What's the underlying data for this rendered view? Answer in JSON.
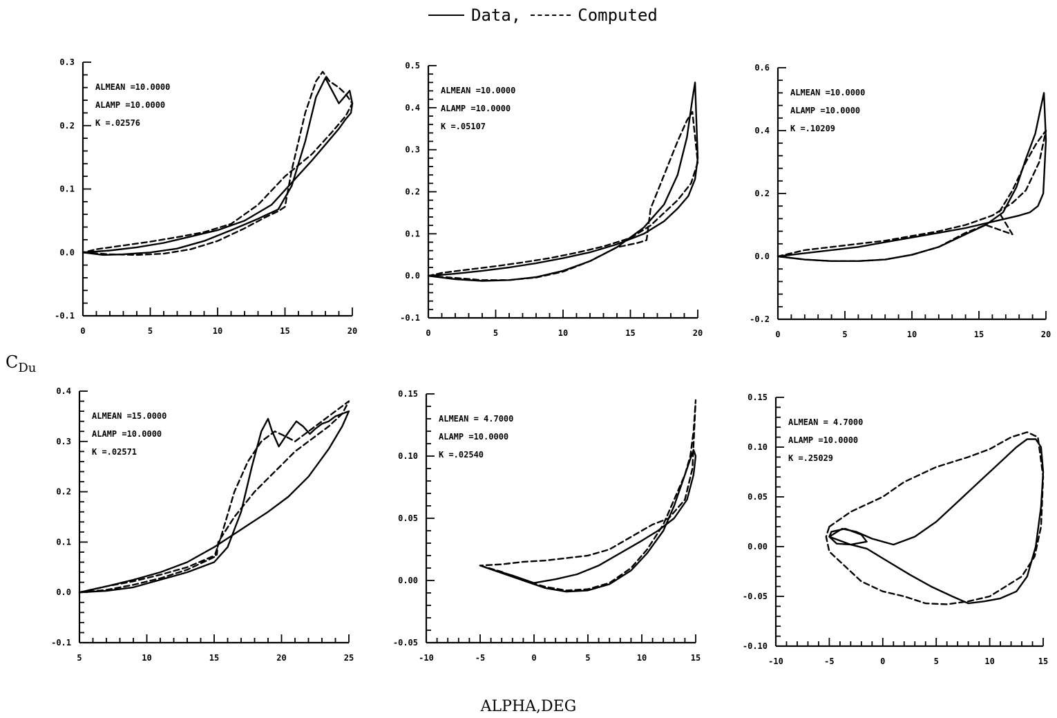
{
  "legend": {
    "data_label": "Data,",
    "computed_label": "Computed"
  },
  "ylabel_main": "C",
  "ylabel_sub": "Du",
  "xlabel": "ALPHA,DEG",
  "chart_data": [
    {
      "type": "line",
      "annotations": [
        "ALMEAN =10.0000",
        "ALAMP =10.0000",
        "K =.02576"
      ],
      "xlim": [
        0,
        20
      ],
      "ylim": [
        -0.1,
        0.3
      ],
      "xticks": [
        0,
        5,
        10,
        15,
        20
      ],
      "xtick_labels": [
        "0",
        "5",
        "10",
        "15",
        "20"
      ],
      "yticks": [
        -0.1,
        0.0,
        0.1,
        0.2,
        0.3
      ],
      "ytick_labels": [
        "-0.1",
        "0.0",
        "0.1",
        "0.2",
        "0.3"
      ],
      "series": [
        {
          "name": "Data",
          "style": "solid",
          "x": [
            0,
            1.5,
            3,
            5,
            7,
            9,
            11,
            13,
            14.5,
            15.5,
            16.5,
            17.3,
            18.0,
            18.5,
            19.0,
            19.4,
            19.8,
            20.0,
            19.9,
            19.5,
            19.0,
            18.0,
            17.0,
            15.5,
            14,
            12,
            10,
            8,
            6,
            4,
            2,
            0
          ],
          "y": [
            0.0,
            -0.004,
            -0.003,
            0.0,
            0.006,
            0.018,
            0.035,
            0.053,
            0.068,
            0.105,
            0.175,
            0.245,
            0.275,
            0.255,
            0.235,
            0.245,
            0.255,
            0.235,
            0.22,
            0.21,
            0.195,
            0.17,
            0.145,
            0.11,
            0.075,
            0.05,
            0.035,
            0.025,
            0.015,
            0.008,
            0.003,
            0.0
          ]
        },
        {
          "name": "Computed",
          "style": "dashed",
          "x": [
            0,
            2,
            4,
            6,
            8,
            10,
            12,
            13.5,
            14.5,
            15.0,
            15.5,
            16.5,
            17.3,
            17.8,
            18.3,
            19.0,
            19.5,
            20.0,
            19.5,
            18.5,
            17,
            15,
            13,
            11,
            9,
            7,
            5,
            3,
            1,
            0
          ],
          "y": [
            0.0,
            -0.003,
            -0.004,
            -0.002,
            0.005,
            0.018,
            0.038,
            0.055,
            0.065,
            0.072,
            0.13,
            0.22,
            0.27,
            0.285,
            0.27,
            0.26,
            0.25,
            0.235,
            0.215,
            0.19,
            0.155,
            0.12,
            0.075,
            0.045,
            0.032,
            0.024,
            0.017,
            0.011,
            0.005,
            0.0
          ]
        }
      ]
    },
    {
      "type": "line",
      "annotations": [
        "ALMEAN =10.0000",
        "ALAMP =10.0000",
        "K =.05107"
      ],
      "xlim": [
        0,
        20
      ],
      "ylim": [
        -0.1,
        0.5
      ],
      "xticks": [
        0,
        5,
        10,
        15,
        20
      ],
      "xtick_labels": [
        "0",
        "5",
        "10",
        "15",
        "20"
      ],
      "yticks": [
        -0.1,
        0.0,
        0.1,
        0.2,
        0.3,
        0.4,
        0.5
      ],
      "ytick_labels": [
        "-0.1",
        "0.0",
        "0.1",
        "0.2",
        "0.3",
        "0.4",
        "0.5"
      ],
      "series": [
        {
          "name": "Data",
          "style": "solid",
          "x": [
            0,
            2,
            4,
            6,
            8,
            10,
            12,
            14,
            16,
            17.5,
            18.5,
            19.2,
            19.6,
            19.8,
            19.9,
            20.0,
            19.8,
            19.3,
            18.5,
            17.5,
            16,
            14,
            12,
            10,
            8,
            6,
            4,
            2,
            0
          ],
          "y": [
            0.0,
            -0.008,
            -0.012,
            -0.01,
            -0.003,
            0.012,
            0.035,
            0.068,
            0.115,
            0.17,
            0.24,
            0.33,
            0.42,
            0.46,
            0.37,
            0.28,
            0.23,
            0.19,
            0.16,
            0.13,
            0.1,
            0.075,
            0.056,
            0.042,
            0.03,
            0.02,
            0.012,
            0.005,
            0.0
          ]
        },
        {
          "name": "Computed",
          "style": "dashed",
          "x": [
            0,
            2,
            4,
            6,
            8,
            10,
            12,
            14,
            15.5,
            16.2,
            16.5,
            17.5,
            18.5,
            19.2,
            19.6,
            20.0,
            19.5,
            18.5,
            17.5,
            16.5,
            15,
            13,
            11,
            9,
            7,
            5,
            3,
            1,
            0
          ],
          "y": [
            0.0,
            -0.005,
            -0.01,
            -0.01,
            -0.004,
            0.01,
            0.035,
            0.068,
            0.078,
            0.085,
            0.16,
            0.24,
            0.32,
            0.37,
            0.39,
            0.27,
            0.22,
            0.18,
            0.15,
            0.12,
            0.09,
            0.07,
            0.055,
            0.042,
            0.032,
            0.023,
            0.015,
            0.007,
            0.0
          ]
        }
      ]
    },
    {
      "type": "line",
      "annotations": [
        "ALMEAN =10.0000",
        "ALAMP =10.0000",
        "K =.10209"
      ],
      "xlim": [
        0,
        20
      ],
      "ylim": [
        -0.2,
        0.6
      ],
      "xticks": [
        0,
        5,
        10,
        15,
        20
      ],
      "xtick_labels": [
        "0",
        "5",
        "10",
        "15",
        "20"
      ],
      "yticks": [
        -0.2,
        0.0,
        0.2,
        0.4,
        0.6
      ],
      "ytick_labels": [
        "-0.2",
        "0.0",
        "0.2",
        "0.4",
        "0.6"
      ],
      "series": [
        {
          "name": "Data",
          "style": "solid",
          "x": [
            0,
            2,
            4,
            6,
            8,
            10,
            12,
            14,
            15.5,
            16.8,
            17.8,
            18.5,
            19.2,
            19.6,
            19.85,
            20.0,
            19.8,
            19.4,
            18.8,
            18.0,
            17.0,
            15.5,
            14,
            12,
            10,
            8,
            6,
            4,
            2,
            0
          ],
          "y": [
            0.0,
            -0.01,
            -0.015,
            -0.015,
            -0.01,
            0.005,
            0.03,
            0.07,
            0.1,
            0.14,
            0.22,
            0.31,
            0.39,
            0.47,
            0.52,
            0.37,
            0.2,
            0.16,
            0.14,
            0.13,
            0.12,
            0.105,
            0.09,
            0.075,
            0.06,
            0.045,
            0.03,
            0.02,
            0.01,
            0.0
          ]
        },
        {
          "name": "Computed",
          "style": "dashed",
          "x": [
            0,
            2,
            4,
            6,
            8,
            10,
            12,
            14,
            15.5,
            16.5,
            17.5,
            16.5,
            17.5,
            18.5,
            19.3,
            20.0,
            19.5,
            18.5,
            17.5,
            16,
            14,
            12,
            10,
            8,
            6,
            4,
            2,
            0
          ],
          "y": [
            0.0,
            -0.01,
            -0.015,
            -0.015,
            -0.01,
            0.005,
            0.03,
            0.075,
            0.1,
            0.085,
            0.07,
            0.14,
            0.21,
            0.3,
            0.36,
            0.4,
            0.3,
            0.21,
            0.17,
            0.13,
            0.1,
            0.08,
            0.065,
            0.05,
            0.04,
            0.03,
            0.02,
            0.0
          ]
        }
      ]
    },
    {
      "type": "line",
      "annotations": [
        "ALMEAN =15.0000",
        "ALAMP =10.0000",
        "K =.02571"
      ],
      "xlim": [
        5,
        25
      ],
      "ylim": [
        -0.1,
        0.4
      ],
      "xticks": [
        5,
        10,
        15,
        20,
        25
      ],
      "xtick_labels": [
        "5",
        "10",
        "15",
        "20",
        "25"
      ],
      "yticks": [
        -0.1,
        0.0,
        0.1,
        0.2,
        0.3,
        0.4
      ],
      "ytick_labels": [
        "-0.1",
        "0.0",
        "0.1",
        "0.2",
        "0.3",
        "0.4"
      ],
      "series": [
        {
          "name": "Data",
          "style": "solid",
          "x": [
            5,
            7,
            9,
            11,
            13,
            15,
            16,
            17,
            17.8,
            18.5,
            19.0,
            19.3,
            19.8,
            20.3,
            20.7,
            21.1,
            21.6,
            22.1,
            22.5,
            23.0,
            23.5,
            24.0,
            24.5,
            25.0,
            24.5,
            23.5,
            22,
            20.5,
            19,
            17,
            15,
            13,
            11,
            9,
            7,
            5
          ],
          "y": [
            0.0,
            0.003,
            0.01,
            0.025,
            0.04,
            0.06,
            0.09,
            0.16,
            0.25,
            0.32,
            0.345,
            0.32,
            0.29,
            0.31,
            0.325,
            0.34,
            0.33,
            0.315,
            0.325,
            0.335,
            0.34,
            0.35,
            0.355,
            0.36,
            0.33,
            0.285,
            0.23,
            0.19,
            0.16,
            0.125,
            0.09,
            0.06,
            0.04,
            0.025,
            0.012,
            0.0
          ]
        },
        {
          "name": "Computed",
          "style": "dashed",
          "x": [
            5,
            7,
            9,
            11,
            13,
            15,
            15.5,
            16.5,
            17.5,
            18.5,
            19.5,
            20.3,
            21.0,
            22.0,
            23.0,
            24.0,
            25.0,
            24.5,
            23.5,
            22.5,
            21,
            19.5,
            18,
            16.5,
            15.3,
            15.2,
            13,
            11,
            9,
            7,
            5
          ],
          "y": [
            0.0,
            0.005,
            0.015,
            0.028,
            0.045,
            0.07,
            0.11,
            0.2,
            0.26,
            0.3,
            0.32,
            0.31,
            0.3,
            0.32,
            0.34,
            0.36,
            0.38,
            0.355,
            0.33,
            0.31,
            0.28,
            0.24,
            0.2,
            0.15,
            0.1,
            0.075,
            0.05,
            0.035,
            0.022,
            0.012,
            0.0
          ]
        }
      ]
    },
    {
      "type": "line",
      "annotations": [
        "ALMEAN = 4.7000",
        "ALAMP =10.0000",
        "K =.02540"
      ],
      "xlim": [
        -10,
        15
      ],
      "ylim": [
        -0.05,
        0.15
      ],
      "xticks": [
        -10,
        -5,
        0,
        5,
        10,
        15
      ],
      "xtick_labels": [
        "-10",
        "-5",
        "0",
        "5",
        "10",
        "15"
      ],
      "yticks": [
        -0.05,
        0.0,
        0.05,
        0.1,
        0.15
      ],
      "ytick_labels": [
        "-0.05",
        "0.00",
        "0.05",
        "0.10",
        "0.15"
      ],
      "series": [
        {
          "name": "Data",
          "style": "solid",
          "x": [
            -5,
            -3,
            -1,
            1,
            3,
            5,
            7,
            9,
            10.5,
            12,
            13,
            13.8,
            14.4,
            14.8,
            15.0,
            14.8,
            14.2,
            13.0,
            11.5,
            10,
            8,
            6,
            4,
            2,
            0,
            -2,
            -4,
            -5
          ],
          "y": [
            0.012,
            0.006,
            0.0,
            -0.006,
            -0.009,
            -0.008,
            -0.003,
            0.008,
            0.022,
            0.04,
            0.06,
            0.08,
            0.095,
            0.105,
            0.1,
            0.085,
            0.065,
            0.05,
            0.04,
            0.032,
            0.022,
            0.012,
            0.005,
            0.001,
            -0.002,
            0.004,
            0.009,
            0.012
          ]
        },
        {
          "name": "Computed",
          "style": "dashed",
          "x": [
            -5,
            -3,
            -1,
            1,
            3,
            5,
            7,
            9,
            10.5,
            12,
            13,
            14,
            14.5,
            14.8,
            15.0,
            14.7,
            14.0,
            12.5,
            11,
            9,
            7,
            5,
            3,
            1,
            -1,
            -3,
            -5
          ],
          "y": [
            0.012,
            0.007,
            0.0,
            -0.005,
            -0.008,
            -0.007,
            -0.002,
            0.01,
            0.025,
            0.045,
            0.065,
            0.085,
            0.1,
            0.12,
            0.145,
            0.09,
            0.065,
            0.05,
            0.045,
            0.035,
            0.025,
            0.02,
            0.018,
            0.016,
            0.015,
            0.013,
            0.012
          ]
        }
      ]
    },
    {
      "type": "line",
      "annotations": [
        "ALMEAN = 4.7000",
        "ALAMP =10.0000",
        "K =.25029"
      ],
      "xlim": [
        -10,
        15
      ],
      "ylim": [
        -0.1,
        0.15
      ],
      "xticks": [
        -10,
        -5,
        0,
        5,
        10,
        15
      ],
      "xtick_labels": [
        "-10",
        "-5",
        "0",
        "5",
        "10",
        "15"
      ],
      "yticks": [
        -0.1,
        -0.05,
        0.0,
        0.05,
        0.1,
        0.15
      ],
      "ytick_labels": [
        "-0.10",
        "-0.05",
        "0.00",
        "0.05",
        "0.10",
        "0.15"
      ],
      "series": [
        {
          "name": "Data",
          "style": "solid",
          "x": [
            -5,
            -3.8,
            -2.5,
            -1,
            1,
            3,
            5,
            7,
            9,
            11,
            12.5,
            13.5,
            14.3,
            14.8,
            15.0,
            14.8,
            14.3,
            13.5,
            12.5,
            11,
            9.5,
            8,
            6.5,
            4.5,
            2.5,
            0.5,
            -1.5,
            -3,
            -4.3,
            -5,
            -4.8,
            -3.5,
            -2,
            -1.5,
            -3,
            -5
          ],
          "y": [
            0.01,
            0.018,
            0.015,
            0.008,
            0.002,
            0.01,
            0.025,
            0.045,
            0.065,
            0.085,
            0.1,
            0.108,
            0.108,
            0.1,
            0.075,
            0.04,
            0.0,
            -0.03,
            -0.045,
            -0.052,
            -0.055,
            -0.057,
            -0.05,
            -0.04,
            -0.028,
            -0.015,
            -0.002,
            0.002,
            0.003,
            0.01,
            0.015,
            0.018,
            0.012,
            0.005,
            0.002,
            0.01
          ]
        },
        {
          "name": "Computed",
          "style": "dashed",
          "x": [
            -5,
            -3,
            -1,
            0,
            2,
            5,
            8,
            10,
            12,
            13.5,
            14.5,
            15.0,
            14.8,
            14.2,
            13,
            11.5,
            10,
            8,
            6,
            4,
            2,
            0,
            -2,
            -3.5,
            -5,
            -5.3,
            -5
          ],
          "y": [
            0.02,
            0.035,
            0.045,
            0.05,
            0.065,
            0.08,
            0.09,
            0.098,
            0.11,
            0.115,
            0.11,
            0.07,
            0.02,
            -0.01,
            -0.03,
            -0.04,
            -0.05,
            -0.055,
            -0.058,
            -0.057,
            -0.05,
            -0.045,
            -0.035,
            -0.02,
            -0.005,
            0.01,
            0.02
          ]
        }
      ]
    }
  ]
}
